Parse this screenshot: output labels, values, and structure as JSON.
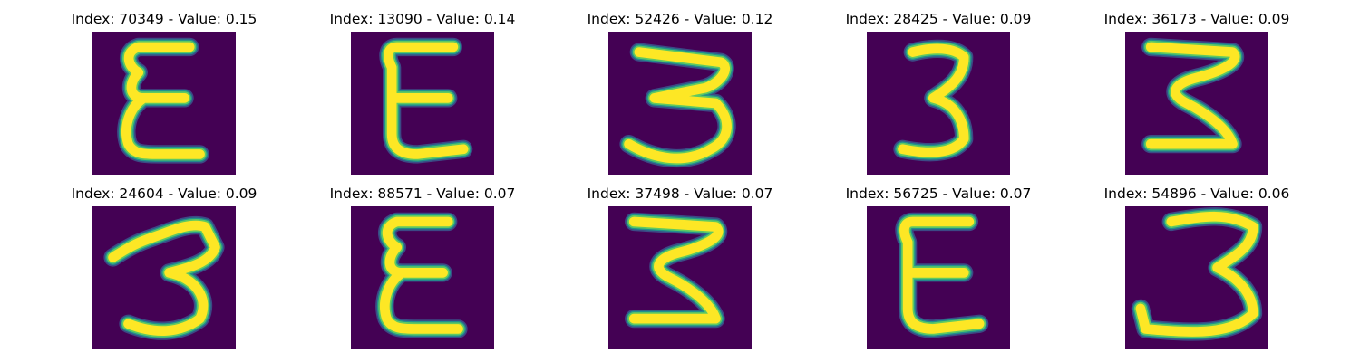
{
  "chart_data": {
    "type": "image-grid",
    "colormap": [
      "#440154",
      "#3b528b",
      "#21918c",
      "#5ec962",
      "#fde725"
    ],
    "panels": [
      {
        "title": "Index: 70349 - Value: 0.15",
        "index": 70349,
        "value": 0.15,
        "glyph": "epsilon"
      },
      {
        "title": "Index: 13090 - Value: 0.14",
        "index": 13090,
        "value": 0.14,
        "glyph": "E-open"
      },
      {
        "title": "Index: 52426 - Value: 0.12",
        "index": 52426,
        "value": 0.12,
        "glyph": "three-wide"
      },
      {
        "title": "Index: 28425 - Value: 0.09",
        "index": 28425,
        "value": 0.09,
        "glyph": "three-narrow"
      },
      {
        "title": "Index: 36173 - Value: 0.09",
        "index": 36173,
        "value": 0.09,
        "glyph": "three-zigzag"
      },
      {
        "title": "Index: 24604 - Value: 0.09",
        "index": 24604,
        "value": 0.09,
        "glyph": "three-slanted"
      },
      {
        "title": "Index: 88571 - Value: 0.07",
        "index": 88571,
        "value": 0.07,
        "glyph": "epsilon"
      },
      {
        "title": "Index: 37498 - Value: 0.07",
        "index": 37498,
        "value": 0.07,
        "glyph": "three-zigzag"
      },
      {
        "title": "Index: 56725 - Value: 0.07",
        "index": 56725,
        "value": 0.07,
        "glyph": "E-open"
      },
      {
        "title": "Index: 54896 - Value: 0.06",
        "index": 54896,
        "value": 0.06,
        "glyph": "three-hook"
      }
    ]
  }
}
